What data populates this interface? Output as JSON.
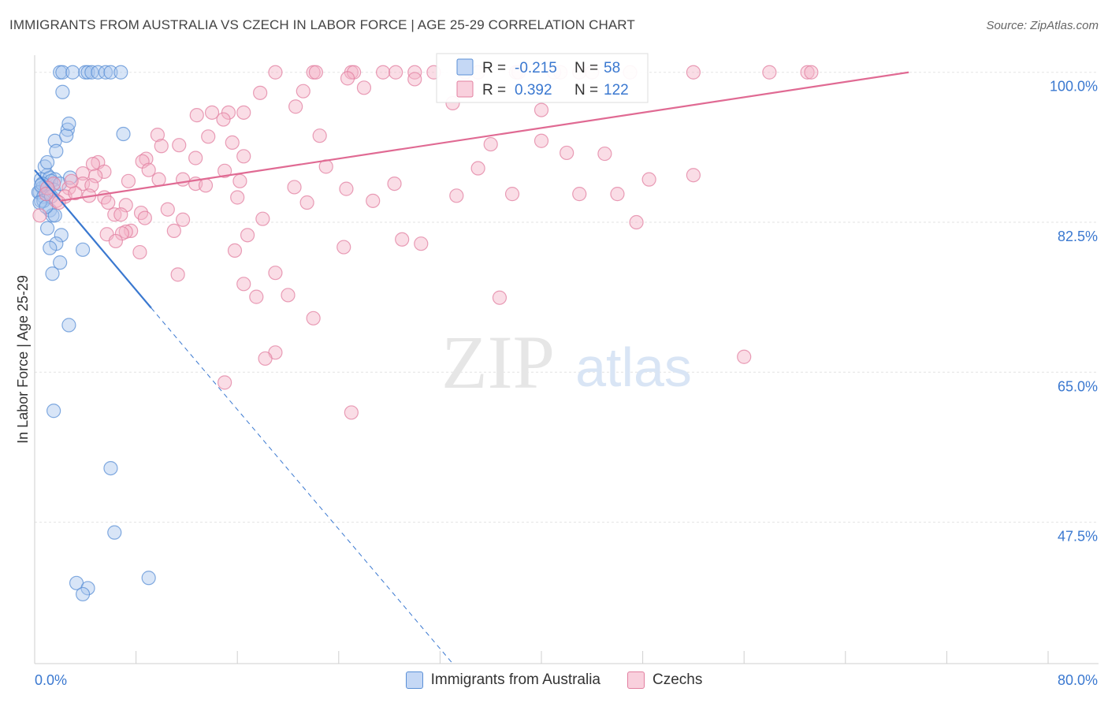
{
  "title": "IMMIGRANTS FROM AUSTRALIA VS CZECH IN LABOR FORCE | AGE 25-29 CORRELATION CHART",
  "source": "Source: ZipAtlas.com",
  "watermark": {
    "zip": "ZIP",
    "atlas": "atlas"
  },
  "colors": {
    "blue_fill": "#a9c5ee",
    "blue_stroke": "#5a8fd6",
    "blue_line": "#3a78d0",
    "pink_fill": "#f5b3c8",
    "pink_stroke": "#e27fa0",
    "pink_line": "#e06a93",
    "grid": "#e3e3e3",
    "axis_text_blue": "#3a78d0",
    "text": "#333333"
  },
  "chart_data": {
    "type": "scatter",
    "title": "IMMIGRANTS FROM AUSTRALIA VS CZECH IN LABOR FORCE | AGE 25-29 CORRELATION CHART",
    "xlabel": "",
    "ylabel": "In Labor Force | Age 25-29",
    "xlim": [
      0,
      80
    ],
    "ylim": [
      31,
      102
    ],
    "x_tick_labels": [
      "0.0%",
      "80.0%"
    ],
    "y_ticks": [
      47.5,
      65.0,
      82.5,
      100.0
    ],
    "y_tick_labels": [
      "47.5%",
      "65.0%",
      "82.5%",
      "100.0%"
    ],
    "legend_stats": [
      {
        "r_label": "R =",
        "r_value": "-0.215",
        "n_label": "N =",
        "n_value": "58"
      },
      {
        "r_label": "R =",
        "r_value": "0.392",
        "n_label": "N =",
        "n_value": "122"
      }
    ],
    "series": [
      {
        "name": "Immigrants from Australia",
        "color": "blue",
        "trend": {
          "x": [
            0.0,
            9.2
          ],
          "y": [
            88.6,
            72.5
          ]
        },
        "trend_dashed": {
          "x": [
            9.2,
            33.0
          ],
          "y": [
            72.5,
            31.0
          ]
        },
        "points": [
          [
            2.0,
            100
          ],
          [
            2.2,
            100
          ],
          [
            3.0,
            100
          ],
          [
            4.0,
            100
          ],
          [
            4.2,
            100
          ],
          [
            4.5,
            100
          ],
          [
            5.0,
            100
          ],
          [
            5.6,
            100
          ],
          [
            6.0,
            100
          ],
          [
            6.8,
            100
          ],
          [
            2.2,
            97.7
          ],
          [
            0.5,
            87.5
          ],
          [
            0.6,
            86.5
          ],
          [
            0.5,
            85.0
          ],
          [
            0.4,
            86.0
          ],
          [
            0.3,
            86.0
          ],
          [
            0.7,
            85.5
          ],
          [
            0.9,
            86.8
          ],
          [
            1.0,
            88.0
          ],
          [
            1.2,
            87.7
          ],
          [
            1.6,
            87.5
          ],
          [
            1.3,
            87.3
          ],
          [
            1.1,
            86.0
          ],
          [
            1.5,
            86.3
          ],
          [
            2.0,
            87.0
          ],
          [
            2.8,
            87.7
          ],
          [
            0.8,
            89.0
          ],
          [
            1.0,
            89.5
          ],
          [
            1.6,
            92.0
          ],
          [
            1.7,
            90.8
          ],
          [
            2.6,
            93.3
          ],
          [
            2.5,
            92.6
          ],
          [
            2.7,
            94.0
          ],
          [
            7.0,
            92.8
          ],
          [
            1.2,
            83.9
          ],
          [
            1.4,
            83.3
          ],
          [
            1.6,
            83.3
          ],
          [
            2.1,
            81.0
          ],
          [
            1.0,
            81.8
          ],
          [
            1.7,
            80.0
          ],
          [
            1.2,
            79.5
          ],
          [
            2.0,
            77.8
          ],
          [
            3.8,
            79.3
          ],
          [
            1.4,
            76.5
          ],
          [
            2.7,
            70.5
          ],
          [
            1.5,
            60.5
          ],
          [
            6.0,
            53.8
          ],
          [
            6.3,
            46.3
          ],
          [
            9.0,
            41.0
          ],
          [
            3.3,
            40.4
          ],
          [
            4.2,
            39.8
          ],
          [
            3.8,
            39.1
          ],
          [
            0.7,
            85.0
          ],
          [
            0.6,
            87.0
          ],
          [
            1.3,
            85.5
          ],
          [
            0.4,
            84.8
          ],
          [
            0.9,
            84.3
          ],
          [
            0.5,
            86.8
          ]
        ]
      },
      {
        "name": "Czechs",
        "color": "pink",
        "trend": {
          "x": [
            2.0,
            69.0
          ],
          "y": [
            85.0,
            100.0
          ]
        },
        "points": [
          [
            19,
            100
          ],
          [
            22,
            100
          ],
          [
            22.2,
            100
          ],
          [
            25,
            100
          ],
          [
            25.2,
            100
          ],
          [
            27.5,
            100
          ],
          [
            28.5,
            100
          ],
          [
            30,
            100
          ],
          [
            31.5,
            100
          ],
          [
            34,
            100
          ],
          [
            35,
            100
          ],
          [
            38,
            100
          ],
          [
            38.2,
            100
          ],
          [
            41,
            100
          ],
          [
            41.5,
            100
          ],
          [
            43,
            100
          ],
          [
            44,
            100
          ],
          [
            47,
            100
          ],
          [
            52,
            100
          ],
          [
            58,
            100
          ],
          [
            61,
            100
          ],
          [
            61.3,
            100
          ],
          [
            33,
            96.4
          ],
          [
            40,
            95.6
          ],
          [
            30,
            99.2
          ],
          [
            26,
            98.2
          ],
          [
            24.7,
            99.3
          ],
          [
            17.8,
            97.6
          ],
          [
            21.2,
            97.8
          ],
          [
            16.5,
            95.3
          ],
          [
            14.0,
            95.3
          ],
          [
            15.3,
            95.3
          ],
          [
            12.8,
            95.0
          ],
          [
            14.9,
            94.5
          ],
          [
            20.6,
            96.0
          ],
          [
            13.7,
            92.5
          ],
          [
            22.5,
            92.6
          ],
          [
            15.6,
            91.8
          ],
          [
            16.5,
            90.2
          ],
          [
            12.7,
            90.0
          ],
          [
            9.7,
            92.7
          ],
          [
            10.0,
            91.4
          ],
          [
            11.4,
            91.5
          ],
          [
            23.0,
            89.0
          ],
          [
            35.0,
            88.8
          ],
          [
            40.0,
            92.0
          ],
          [
            42.0,
            90.6
          ],
          [
            36.0,
            91.6
          ],
          [
            45.0,
            90.5
          ],
          [
            5.0,
            89.5
          ],
          [
            4.6,
            89.3
          ],
          [
            5.5,
            88.4
          ],
          [
            8.8,
            89.9
          ],
          [
            8.5,
            89.6
          ],
          [
            9.0,
            88.6
          ],
          [
            3.8,
            88.2
          ],
          [
            4.8,
            87.9
          ],
          [
            7.4,
            87.3
          ],
          [
            3.8,
            87.0
          ],
          [
            4.5,
            86.8
          ],
          [
            1.5,
            87.0
          ],
          [
            2.7,
            86.5
          ],
          [
            9.8,
            87.5
          ],
          [
            11.7,
            87.5
          ],
          [
            12.7,
            87.0
          ],
          [
            15.0,
            88.5
          ],
          [
            16.2,
            87.3
          ],
          [
            16.0,
            85.4
          ],
          [
            13.5,
            86.8
          ],
          [
            20.5,
            86.6
          ],
          [
            24.6,
            86.4
          ],
          [
            28.4,
            87.0
          ],
          [
            33.3,
            85.6
          ],
          [
            37.7,
            85.8
          ],
          [
            43.0,
            85.8
          ],
          [
            46.0,
            85.8
          ],
          [
            48.5,
            87.5
          ],
          [
            52.0,
            88.0
          ],
          [
            2.4,
            85.5
          ],
          [
            3.2,
            85.9
          ],
          [
            4.3,
            85.6
          ],
          [
            5.5,
            85.4
          ],
          [
            1.0,
            86.5
          ],
          [
            1.7,
            85.0
          ],
          [
            5.8,
            84.8
          ],
          [
            7.2,
            84.5
          ],
          [
            6.3,
            83.4
          ],
          [
            6.8,
            83.4
          ],
          [
            8.4,
            83.6
          ],
          [
            8.7,
            83.0
          ],
          [
            10.5,
            84.0
          ],
          [
            11.7,
            82.8
          ],
          [
            18.0,
            82.9
          ],
          [
            21.5,
            84.8
          ],
          [
            26.7,
            85.0
          ],
          [
            7.6,
            81.5
          ],
          [
            7.2,
            81.4
          ],
          [
            6.9,
            81.2
          ],
          [
            5.7,
            81.1
          ],
          [
            6.4,
            80.3
          ],
          [
            11.0,
            81.5
          ],
          [
            16.8,
            81.0
          ],
          [
            24.4,
            79.6
          ],
          [
            29.0,
            80.5
          ],
          [
            30.5,
            80.0
          ],
          [
            47.5,
            82.5
          ],
          [
            8.3,
            79.0
          ],
          [
            15.8,
            79.2
          ],
          [
            11.3,
            76.4
          ],
          [
            19.0,
            76.6
          ],
          [
            16.5,
            75.3
          ],
          [
            17.5,
            73.8
          ],
          [
            20.0,
            74.0
          ],
          [
            36.7,
            73.7
          ],
          [
            22.0,
            71.3
          ],
          [
            19.0,
            67.3
          ],
          [
            18.2,
            66.6
          ],
          [
            56.0,
            66.8
          ],
          [
            15.0,
            63.8
          ],
          [
            25.0,
            60.3
          ],
          [
            0.4,
            83.3
          ],
          [
            1.9,
            84.8
          ],
          [
            2.9,
            87.3
          ],
          [
            0.9,
            85.8
          ]
        ]
      }
    ]
  },
  "legend": {
    "items": [
      "Immigrants from Australia",
      "Czechs"
    ]
  }
}
